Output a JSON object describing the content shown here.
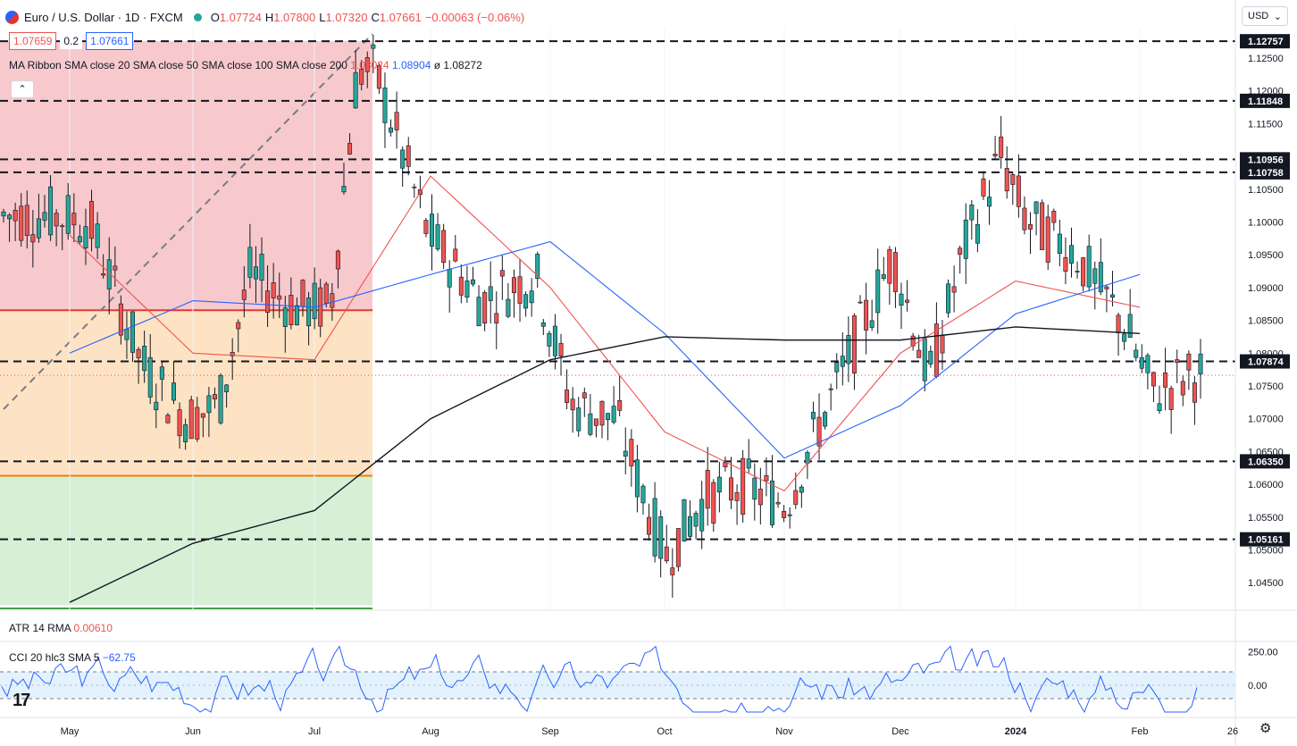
{
  "header": {
    "symbol": "Euro / U.S. Dollar · 1D · FXCM",
    "open_label": "O",
    "open": "1.07724",
    "high_label": "H",
    "high": "1.07800",
    "low_label": "L",
    "low": "1.07320",
    "close_label": "C",
    "close": "1.07661",
    "change": "−0.00063 (−0.06%)"
  },
  "fib_inputs": {
    "sell": "1.07659",
    "spread": "0.2",
    "buy": "1.07661"
  },
  "ma_ribbon": {
    "label": "MA Ribbon SMA close 20 SMA close 50 SMA close 100 SMA close 200",
    "v1": "1.08024",
    "v2": "1.08904",
    "v3": "ø",
    "v4": "1.08272"
  },
  "atr": {
    "label": "ATR 14 RMA",
    "value": "0.00610"
  },
  "cci": {
    "label": "CCI 20 hlc3 SMA 5",
    "value": "−62.75"
  },
  "currency_button": {
    "label": "USD",
    "icon": "chevron-down-icon"
  },
  "colors": {
    "up": "#26a69a",
    "down": "#ef5350",
    "sma20": "#ef5350",
    "sma50": "#2962ff",
    "sma200": "#131722",
    "fib_red": "#f7c9cc",
    "fib_orange": "#fde3c4",
    "fib_green": "#d6f0d6"
  },
  "chart_data": [
    {
      "type": "line",
      "title": "Euro / U.S. Dollar · 1D · FXCM",
      "x_ticks": [
        "May",
        "Jun",
        "Jul",
        "Aug",
        "Sep",
        "Oct",
        "Nov",
        "Dec",
        "2024",
        "Feb",
        "26"
      ],
      "y_ticks": [
        "1.12500",
        "1.12000",
        "1.11500",
        "1.10500",
        "1.10000",
        "1.09500",
        "1.09000",
        "1.08500",
        "1.08000",
        "1.07500",
        "1.07000",
        "1.06500",
        "1.06000",
        "1.05500",
        "1.05000",
        "1.04500"
      ],
      "ylim": [
        1.0408,
        1.1295
      ],
      "horizontal_levels": [
        "1.12757",
        "1.11848",
        "1.10956",
        "1.10758",
        "1.07874",
        "1.06350",
        "1.05161"
      ],
      "current_price": 1.07661,
      "series": [
        {
          "name": "Close (approx.)",
          "x": [
            "May",
            "Jun",
            "Jul",
            "Aug",
            "Sep",
            "Oct",
            "Nov",
            "Dec",
            "2024",
            "Feb"
          ],
          "values": [
            1.102,
            1.0735,
            1.088,
            1.1,
            1.085,
            1.057,
            1.062,
            1.091,
            1.104,
            1.079
          ]
        },
        {
          "name": "SMA 20 (approx.)",
          "x": [
            "May",
            "Jun",
            "Jul",
            "Aug",
            "Sep",
            "Oct",
            "Nov",
            "Dec",
            "2024",
            "Feb"
          ],
          "values": [
            1.098,
            1.08,
            1.079,
            1.107,
            1.09,
            1.068,
            1.059,
            1.08,
            1.091,
            1.087
          ]
        },
        {
          "name": "SMA 50 (approx.)",
          "x": [
            "May",
            "Jun",
            "Jul",
            "Aug",
            "Sep",
            "Oct",
            "Nov",
            "Dec",
            "2024",
            "Feb"
          ],
          "values": [
            1.08,
            1.088,
            1.087,
            1.092,
            1.097,
            1.083,
            1.064,
            1.072,
            1.086,
            1.092
          ]
        },
        {
          "name": "SMA 200 (approx.)",
          "x": [
            "May",
            "Jun",
            "Jul",
            "Aug",
            "Sep",
            "Oct",
            "Nov",
            "Dec",
            "2024",
            "Feb"
          ],
          "values": [
            1.042,
            1.051,
            1.056,
            1.07,
            1.079,
            1.0825,
            1.082,
            1.082,
            1.084,
            1.083
          ]
        }
      ],
      "candle_count": 205
    },
    {
      "type": "line",
      "title": "CCI 20 hlc3 SMA 5",
      "y_ticks": [
        "250.00",
        "0.00"
      ],
      "band": [
        -100,
        100
      ],
      "ylim": [
        -220,
        300
      ]
    }
  ]
}
